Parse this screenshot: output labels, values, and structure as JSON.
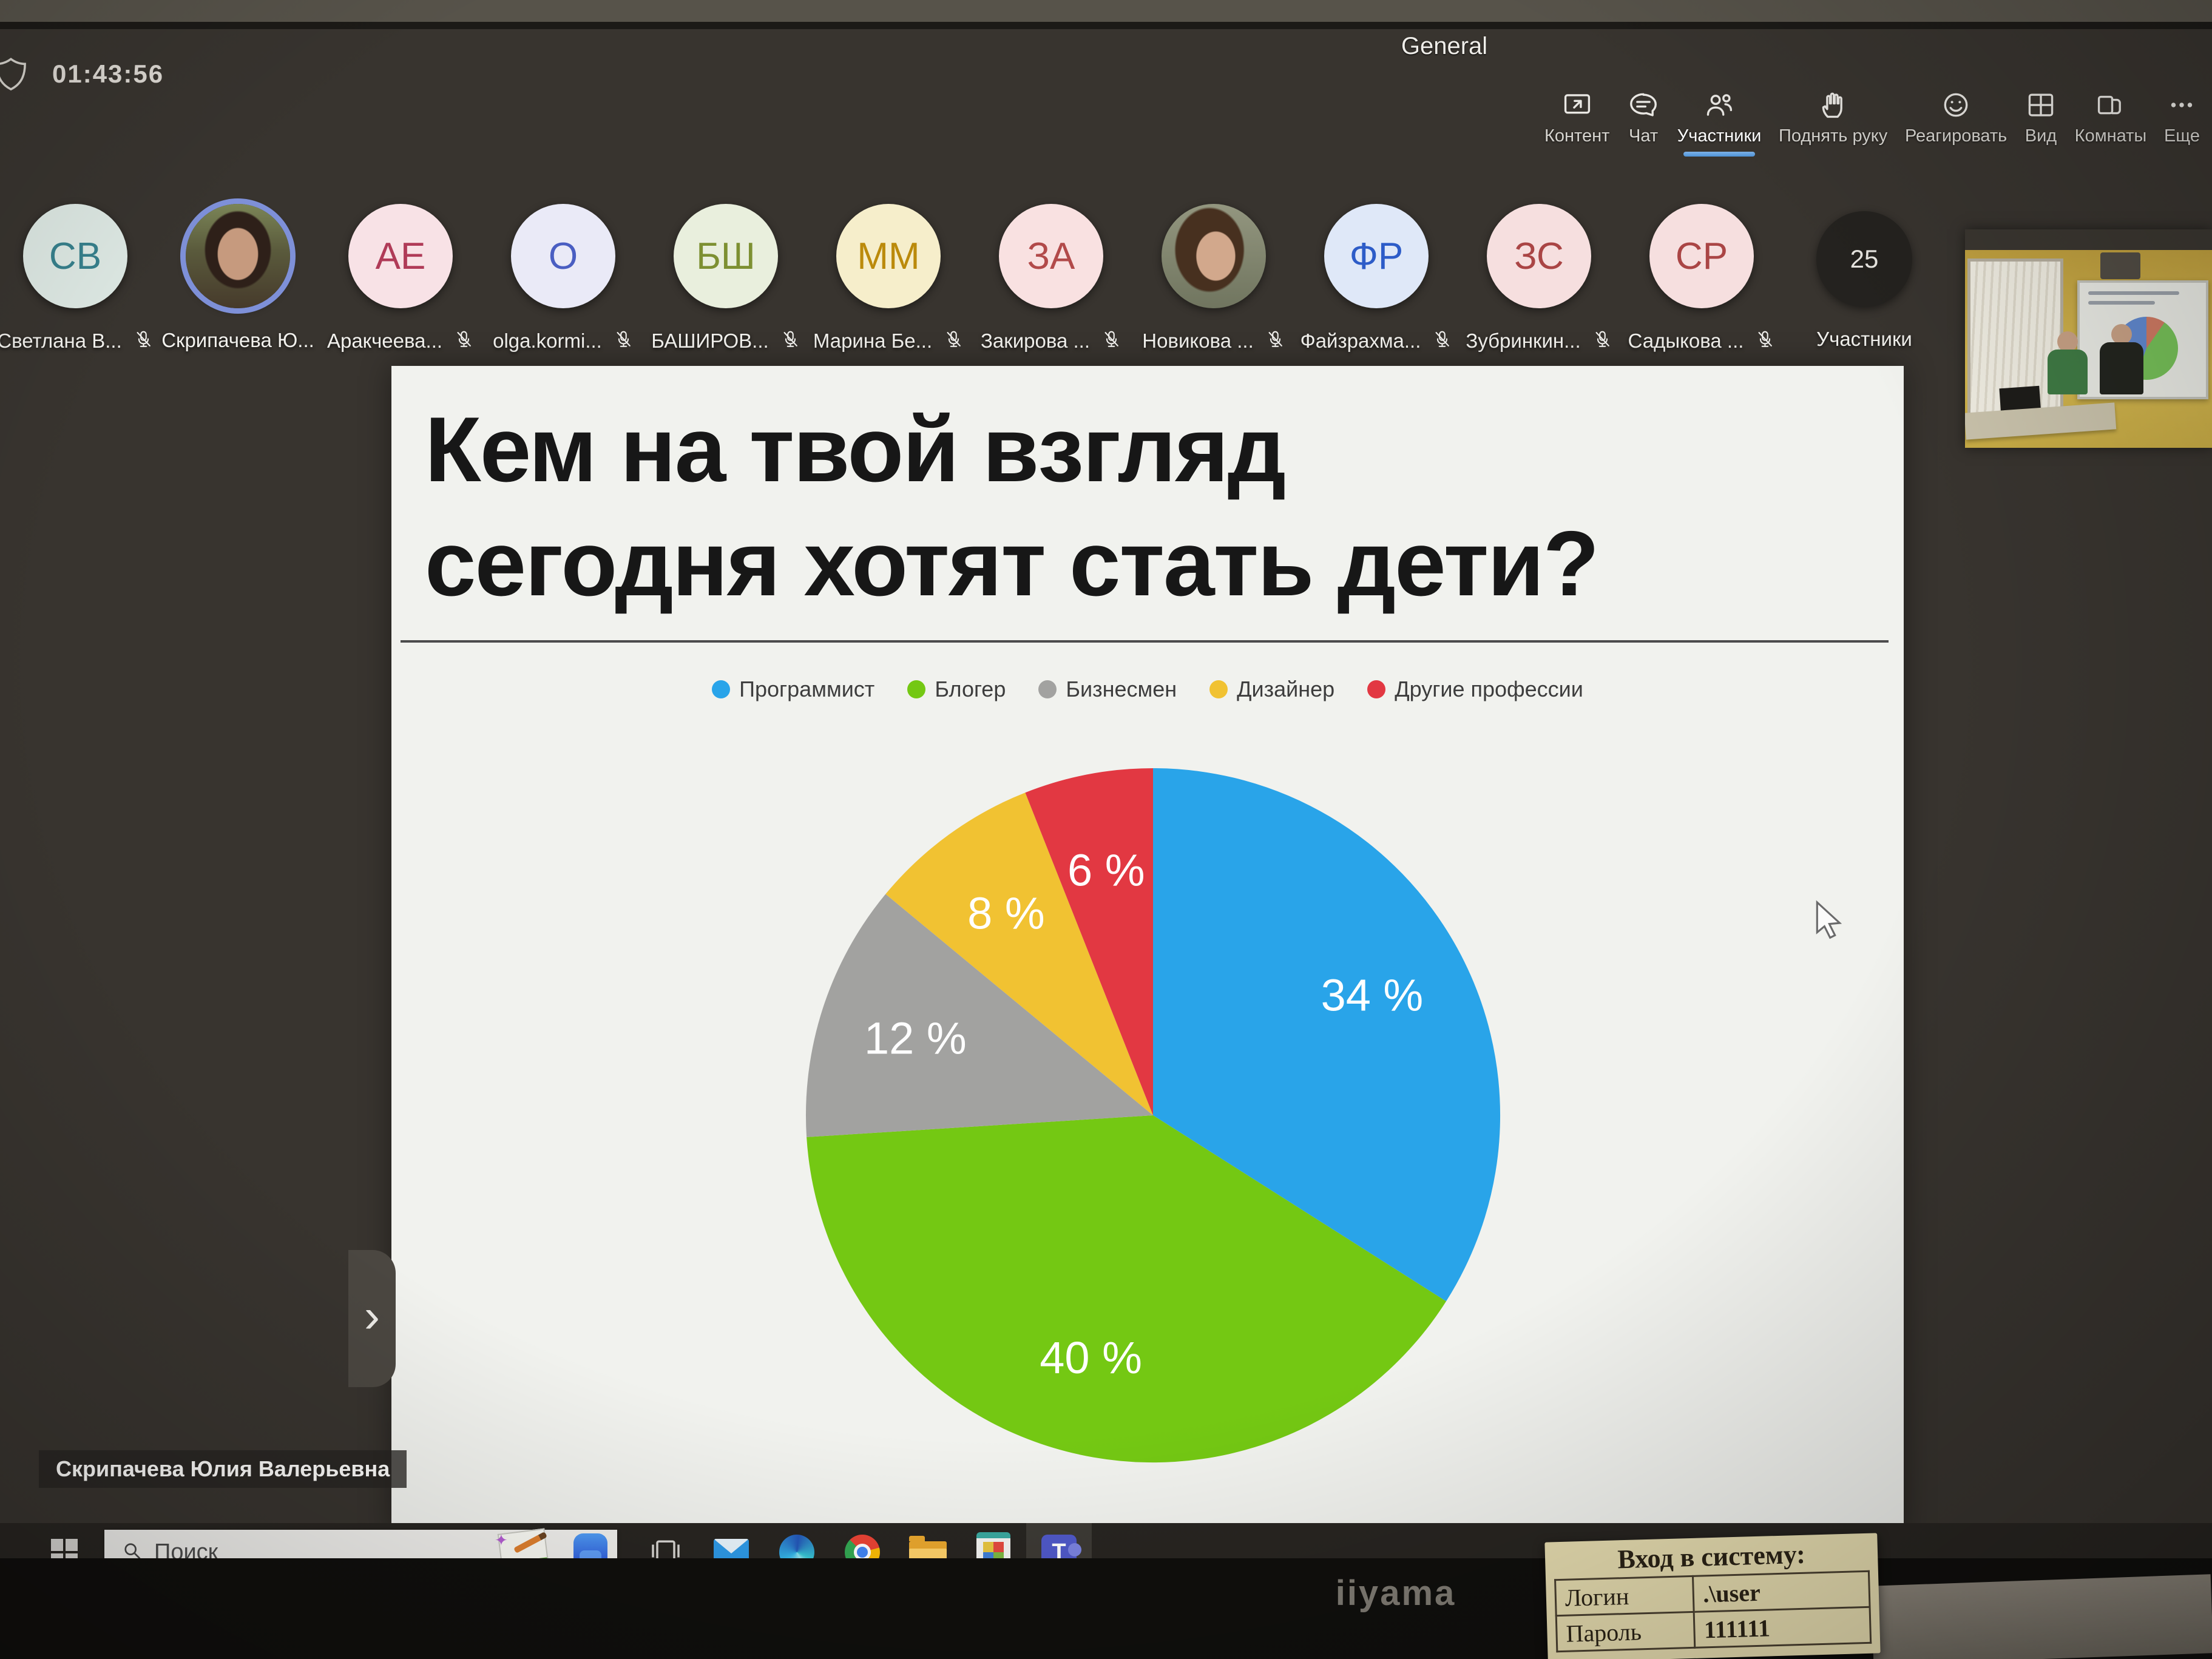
{
  "meeting": {
    "room_title": "General",
    "elapsed_time": "01:43:56",
    "toolbar": [
      {
        "id": "content",
        "icon": "share-screen-icon",
        "label": "Контент",
        "active": false
      },
      {
        "id": "chat",
        "icon": "chat-icon",
        "label": "Чат",
        "active": false
      },
      {
        "id": "participants",
        "icon": "people-icon",
        "label": "Участники",
        "active": true
      },
      {
        "id": "raise-hand",
        "icon": "hand-icon",
        "label": "Поднять руку",
        "active": false
      },
      {
        "id": "react",
        "icon": "smiley-icon",
        "label": "Реагировать",
        "active": false
      },
      {
        "id": "view",
        "icon": "grid-icon",
        "label": "Вид",
        "active": false
      },
      {
        "id": "rooms",
        "icon": "rooms-icon",
        "label": "Комнаты",
        "active": false
      },
      {
        "id": "more",
        "icon": "more-icon",
        "label": "Еще",
        "active": false
      }
    ],
    "participants": [
      {
        "name": "Светлана В...",
        "initials": "СВ",
        "avatar": "initials",
        "bg": "#dde8e3",
        "fg": "#37808c",
        "muted": true
      },
      {
        "name": "Скрипачева Ю...",
        "avatar": "photo",
        "photo_variant": "v1",
        "active_ring": true,
        "muted": false
      },
      {
        "name": "Аракчеева...",
        "initials": "АЕ",
        "avatar": "initials",
        "bg": "#f8e2e6",
        "fg": "#b03b58",
        "muted": true
      },
      {
        "name": "olga.kormi...",
        "initials": "О",
        "avatar": "initials",
        "bg": "#eaeaf7",
        "fg": "#4a5ec2",
        "muted": true
      },
      {
        "name": "БАШИРОВ...",
        "initials": "БШ",
        "avatar": "initials",
        "bg": "#e9efdd",
        "fg": "#7d9032",
        "muted": true
      },
      {
        "name": "Марина Бе...",
        "initials": "ММ",
        "avatar": "initials",
        "bg": "#f6eecb",
        "fg": "#bb8a0b",
        "muted": true
      },
      {
        "name": "Закирова ...",
        "initials": "ЗА",
        "avatar": "initials",
        "bg": "#f9e1e1",
        "fg": "#b24a4a",
        "muted": true
      },
      {
        "name": "Новикова ...",
        "avatar": "photo",
        "photo_variant": "v2",
        "active_ring": false,
        "muted": true
      },
      {
        "name": "Файзрахма...",
        "initials": "ФР",
        "avatar": "initials",
        "bg": "#dfe8f8",
        "fg": "#2d5cc8",
        "muted": true
      },
      {
        "name": "Зубринкин...",
        "initials": "ЗС",
        "avatar": "initials",
        "bg": "#f6dfdf",
        "fg": "#aa4545",
        "muted": true
      },
      {
        "name": "Садыкова ...",
        "initials": "СР",
        "avatar": "initials",
        "bg": "#f6dfdf",
        "fg": "#aa4545",
        "muted": true
      }
    ],
    "participants_count": "25",
    "participants_count_label": "Участники",
    "presenter_overlay_name": "Скрипачева Юлия Валерьевна"
  },
  "slide": {
    "title_lines": [
      "Кем на твой взгляд",
      "сегодня хотят стать дети?"
    ]
  },
  "chart_data": {
    "type": "pie",
    "title": "Кем на твой взгляд сегодня хотят стать дети?",
    "labels": [
      "Программист",
      "Блогер",
      "Бизнесмен",
      "Дизайнер",
      "Другие профессии"
    ],
    "values": [
      34,
      40,
      12,
      8,
      6
    ],
    "unit": "%",
    "colors": [
      "#29a4e9",
      "#74c813",
      "#a2a2a0",
      "#f1c232",
      "#e23842"
    ],
    "label_format": "{v} %",
    "start_angle_deg": 0,
    "direction": "clockwise",
    "legend_position": "top"
  },
  "taskbar": {
    "search_placeholder": "Поиск",
    "app_icons": [
      {
        "id": "task-view",
        "name": "task-view-button",
        "indicator": false,
        "highlight": false
      },
      {
        "id": "mail",
        "name": "mail-app",
        "indicator": false,
        "highlight": false
      },
      {
        "id": "edge",
        "name": "edge-browser",
        "indicator": false,
        "highlight": false
      },
      {
        "id": "chrome",
        "name": "chrome-browser",
        "indicator": false,
        "highlight": false
      },
      {
        "id": "explorer",
        "name": "file-explorer",
        "indicator": true,
        "highlight": false
      },
      {
        "id": "photos",
        "name": "photos-app",
        "indicator": false,
        "highlight": false
      },
      {
        "id": "teams",
        "name": "teams-app",
        "indicator": true,
        "highlight": true
      }
    ]
  },
  "monitor": {
    "brand": "iiyama"
  },
  "sticky_note": {
    "heading": "Вход в систему:",
    "rows": [
      {
        "label": "Логин",
        "value": ".\\user"
      },
      {
        "label": "Пароль",
        "value": "111111"
      }
    ]
  }
}
